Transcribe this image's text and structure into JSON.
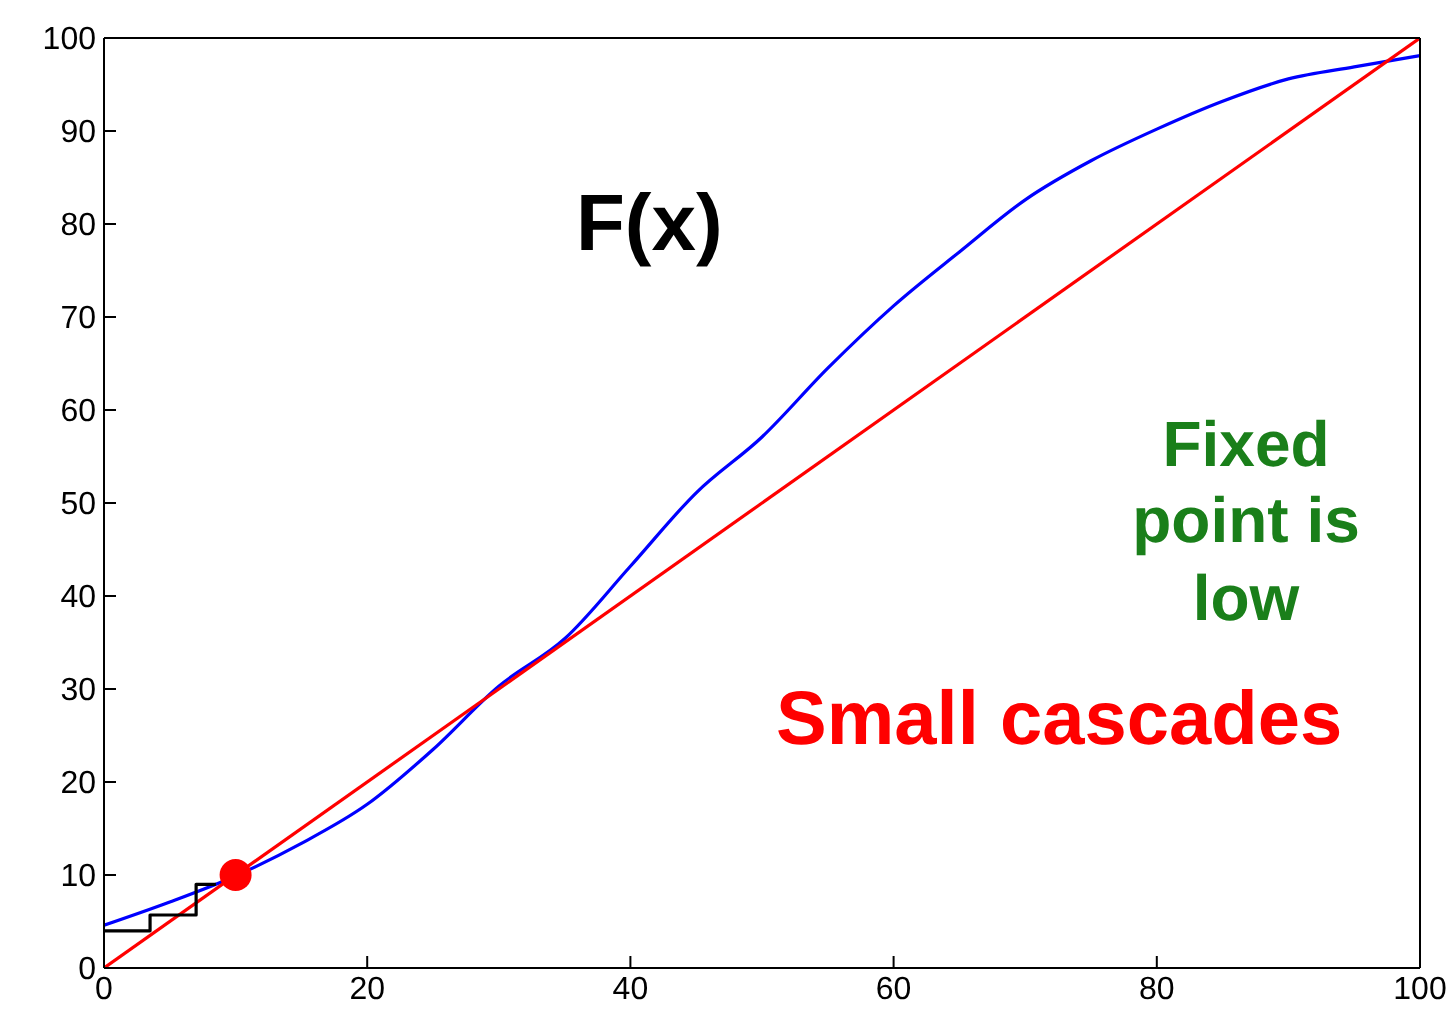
{
  "chart_data": {
    "type": "line",
    "xlim": [
      0,
      100
    ],
    "ylim": [
      0,
      100
    ],
    "xticks": [
      0,
      20,
      40,
      60,
      80,
      100
    ],
    "yticks": [
      0,
      10,
      20,
      30,
      40,
      50,
      60,
      70,
      80,
      90,
      100
    ],
    "grid": false,
    "line_style": "solid",
    "annotations": [
      "F(x)",
      "Fixed point is low",
      "Small cascades"
    ],
    "series": [
      {
        "type": "line",
        "color": "#0000ff",
        "marker": "none",
        "x": [
          0,
          5,
          10,
          15,
          20,
          25,
          30,
          35,
          40,
          45,
          50,
          55,
          60,
          65,
          70,
          75,
          80,
          85,
          90,
          95,
          100
        ],
        "values": [
          4.6,
          7.1,
          9.9,
          13.4,
          17.6,
          23.5,
          30.3,
          35.4,
          43.2,
          51.1,
          57.1,
          64.5,
          71.2,
          77,
          82.6,
          86.8,
          90.2,
          93.2,
          95.6,
          96.9,
          98.1
        ]
      },
      {
        "type": "line",
        "color": "#ff0000",
        "marker": "none",
        "x": [
          0,
          100
        ],
        "values": [
          0,
          100
        ]
      },
      {
        "type": "line",
        "color": "#000000",
        "marker": "none",
        "x": [
          0,
          3.5,
          3.5,
          7,
          7,
          8.5
        ],
        "values": [
          4,
          4,
          5.7,
          5.7,
          9,
          9
        ]
      },
      {
        "type": "scatter",
        "color": "#ff0000",
        "marker": "circle",
        "x": [
          10
        ],
        "values": [
          10
        ]
      }
    ]
  }
}
